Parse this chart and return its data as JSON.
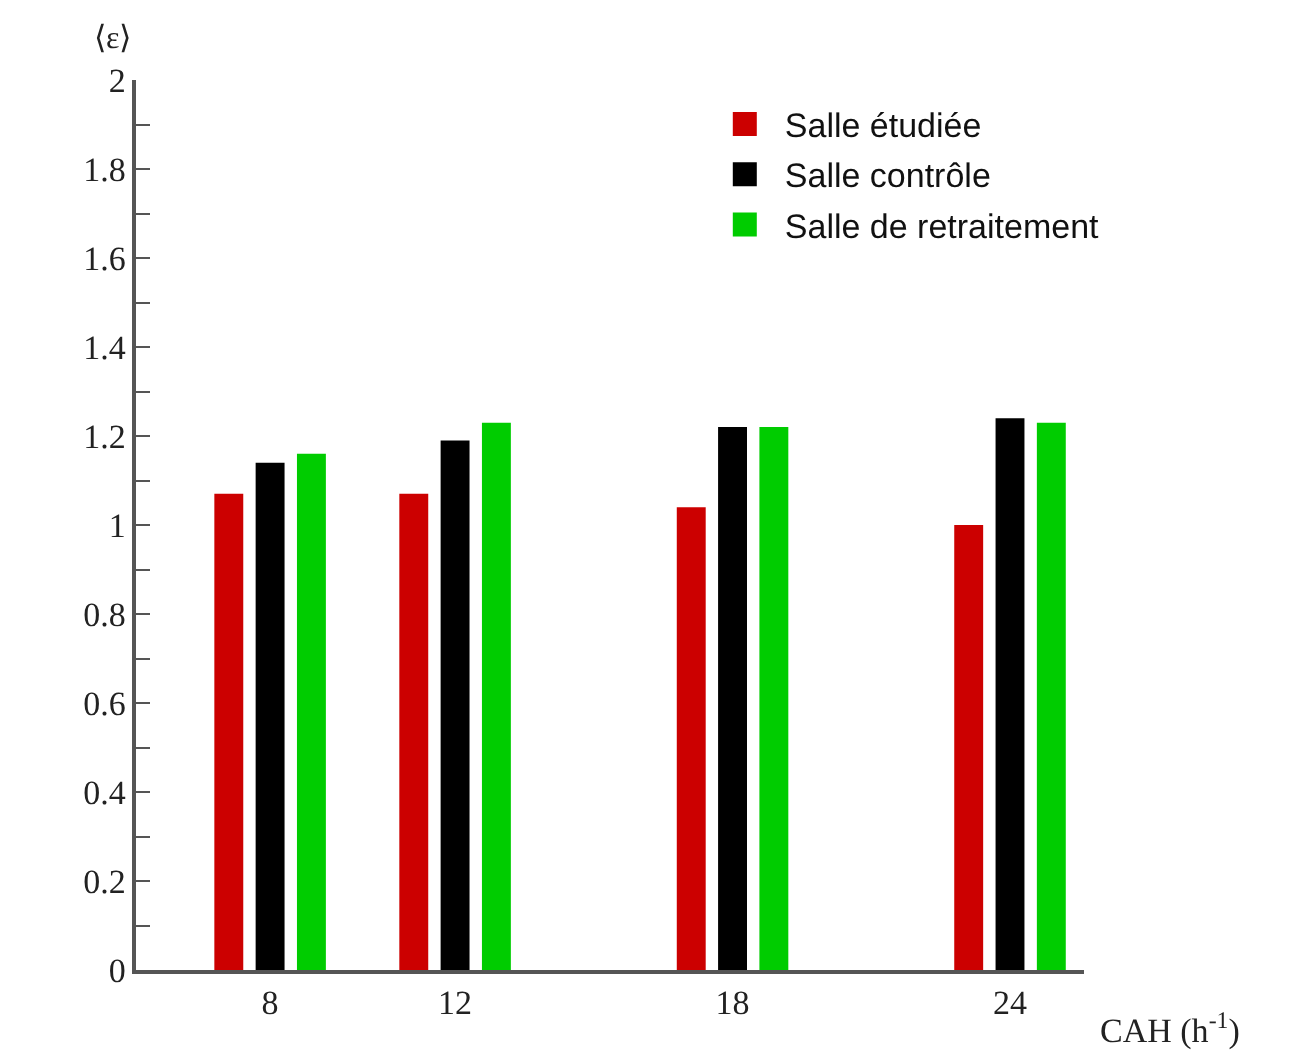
{
  "chart_data": {
    "type": "bar",
    "xlabel": "CAH (h$^{-1}$)",
    "ylabel": "⟨ε⟩",
    "x": [
      8,
      12,
      18,
      24
    ],
    "series": [
      {
        "name": "Salle étudiée",
        "color": "#cc0000",
        "values": [
          1.07,
          1.07,
          1.04,
          1.0
        ]
      },
      {
        "name": "Salle contrôle",
        "color": "#000000",
        "values": [
          1.14,
          1.19,
          1.22,
          1.24
        ]
      },
      {
        "name": "Salle de retraitement",
        "color": "#00cc00",
        "values": [
          1.16,
          1.23,
          1.22,
          1.23
        ]
      }
    ],
    "xlim": [
      5.1,
      25.6
    ],
    "xticks": [
      8,
      12,
      18,
      24
    ],
    "ylim": [
      0,
      2
    ],
    "yticks": [
      0,
      {
        "value": 0.1,
        "label": null
      },
      0.2,
      {
        "value": 0.3,
        "label": null
      },
      0.4,
      {
        "value": 0.5,
        "label": null
      },
      0.6,
      {
        "value": 0.7,
        "label": null
      },
      0.8,
      {
        "value": 0.9,
        "label": null
      },
      1,
      {
        "value": 1.1,
        "label": null
      },
      1.2,
      {
        "value": 1.3,
        "label": null
      },
      1.4,
      {
        "value": 1.5,
        "label": null
      },
      1.6,
      {
        "value": 1.7,
        "label": null
      },
      1.8,
      {
        "value": 1.9,
        "label": null
      },
      2
    ],
    "legend": "top right"
  }
}
